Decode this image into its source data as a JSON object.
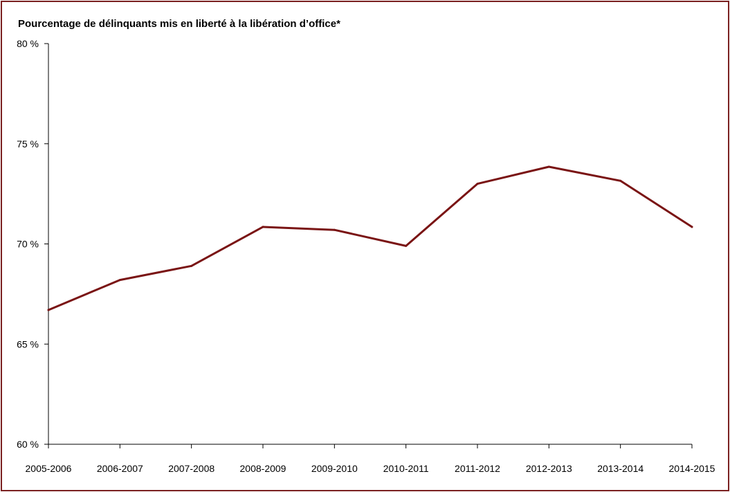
{
  "chart_data": {
    "type": "line",
    "title": "Pourcentage de délinquants mis en liberté à la libération d’office*",
    "xlabel": "",
    "ylabel": "",
    "categories": [
      "2005-2006",
      "2006-2007",
      "2007-2008",
      "2008-2009",
      "2009-2010",
      "2010-2011",
      "2011-2012",
      "2012-2013",
      "2013-2014",
      "2014-2015"
    ],
    "series": [
      {
        "values": [
          66.7,
          68.2,
          68.9,
          70.85,
          70.7,
          69.9,
          73.0,
          73.85,
          73.15,
          70.85
        ],
        "color": "#7a1414"
      }
    ],
    "ylim": [
      60,
      80
    ],
    "yticks": [
      {
        "value": 80,
        "label": "80 %"
      },
      {
        "value": 75,
        "label": "75 %"
      },
      {
        "value": 70,
        "label": "70 %"
      },
      {
        "value": 65,
        "label": "65 %"
      },
      {
        "value": 60,
        "label": "60 %"
      }
    ],
    "grid": false,
    "legend": "none"
  }
}
